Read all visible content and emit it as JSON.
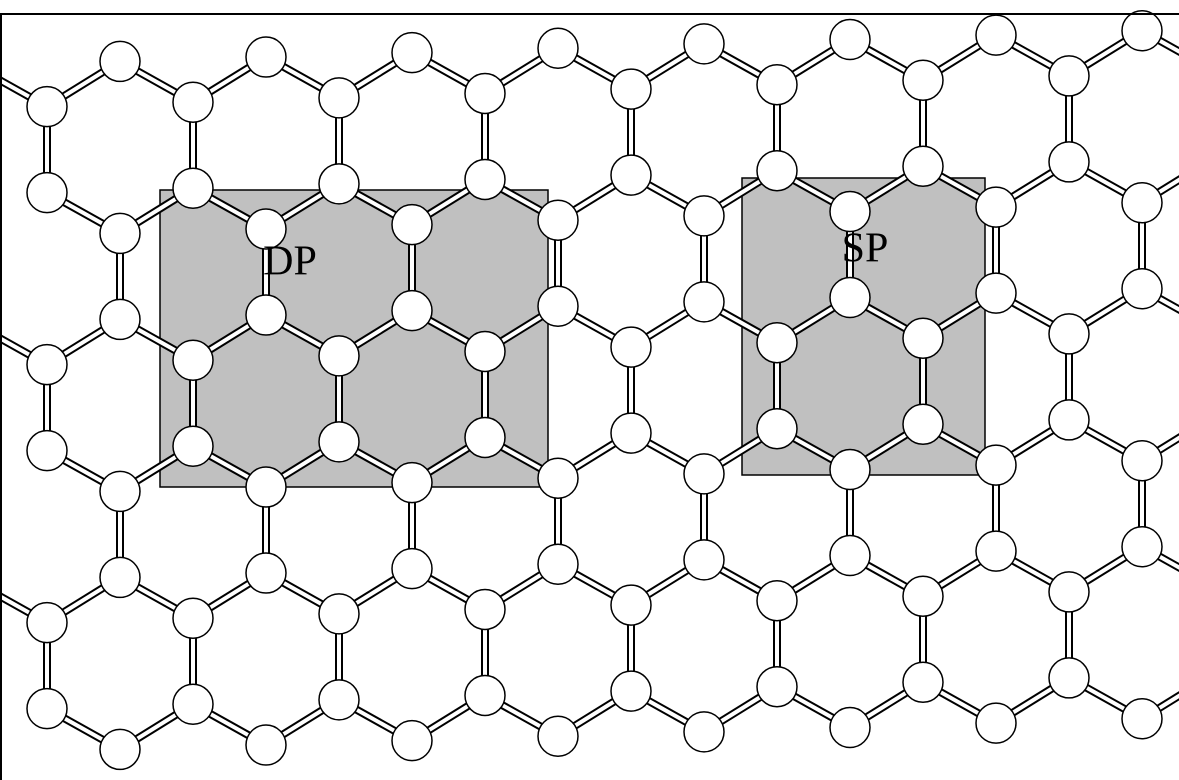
{
  "regions": [
    {
      "label": "DP"
    },
    {
      "label": "SP"
    }
  ]
}
